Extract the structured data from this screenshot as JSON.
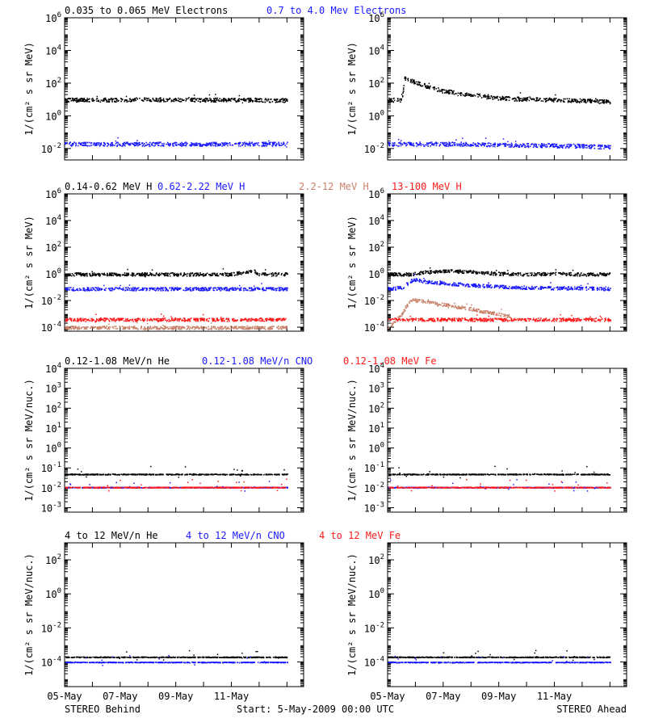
{
  "colors": {
    "black": "#000000",
    "blue": "#1a1aff",
    "tan": "#c8826a",
    "red": "#ff1a1a",
    "axis": "#000000"
  },
  "footer": {
    "left_label": "STEREO Behind",
    "center_label": "Start:  5-May-2009 00:00 UTC",
    "right_label": "STEREO Ahead"
  },
  "x_ticks": [
    "05-May",
    "07-May",
    "09-May",
    "11-May"
  ],
  "chart_data": [
    {
      "type": "scatter",
      "panel": "electrons-behind",
      "ylabel": "1/(cm² s sr MeV)",
      "yscale": "log",
      "ylim": [
        0.002,
        1000000
      ],
      "y_ticks": [
        {
          "label": "10^-2",
          "exp": -2
        },
        {
          "label": "10^0",
          "exp": 0
        },
        {
          "label": "10^2",
          "exp": 2
        },
        {
          "label": "10^4",
          "exp": 4
        },
        {
          "label": "10^6",
          "exp": 6
        }
      ],
      "title_entries": [
        {
          "text": "0.035 to 0.065 MeV Electrons",
          "color": "#000000"
        },
        {
          "text": "0.7 to 4.0 Mev Electrons",
          "color": "#1a1aff"
        }
      ],
      "series": [
        {
          "name": "0.035 to 0.065 MeV Electrons",
          "color": "#000000",
          "x": [
            0,
            1,
            2,
            3,
            4,
            5,
            6,
            7,
            8
          ],
          "y": [
            10,
            10,
            10,
            11,
            10,
            10,
            10,
            10,
            9
          ]
        },
        {
          "name": "0.7 to 4.0 Mev Electrons",
          "color": "#1a1aff",
          "x": [
            0,
            1,
            2,
            3,
            4,
            5,
            6,
            7,
            8
          ],
          "y": [
            0.02,
            0.02,
            0.02,
            0.02,
            0.02,
            0.02,
            0.02,
            0.02,
            0.02
          ]
        }
      ]
    },
    {
      "type": "scatter",
      "panel": "electrons-ahead",
      "ylabel": "1/(cm² s sr MeV)",
      "yscale": "log",
      "ylim": [
        0.002,
        1000000
      ],
      "y_ticks": [
        {
          "label": "10^-2",
          "exp": -2
        },
        {
          "label": "10^0",
          "exp": 0
        },
        {
          "label": "10^2",
          "exp": 2
        },
        {
          "label": "10^4",
          "exp": 4
        },
        {
          "label": "10^6",
          "exp": 6
        }
      ],
      "title_entries": [],
      "series": [
        {
          "name": "0.035 to 0.065 MeV Electrons",
          "color": "#000000",
          "x": [
            0,
            0.5,
            0.6,
            1,
            1.5,
            2,
            3,
            4,
            5,
            6,
            7,
            8
          ],
          "y": [
            10,
            10,
            200,
            120,
            60,
            35,
            20,
            13,
            11,
            10,
            9,
            8
          ]
        },
        {
          "name": "0.7 to 4.0 Mev Electrons",
          "color": "#1a1aff",
          "x": [
            0,
            1,
            2,
            3,
            4,
            5,
            6,
            7,
            8
          ],
          "y": [
            0.02,
            0.02,
            0.02,
            0.02,
            0.018,
            0.017,
            0.016,
            0.015,
            0.013
          ]
        }
      ]
    },
    {
      "type": "scatter",
      "panel": "protons-behind",
      "ylabel": "1/(cm² s sr MeV)",
      "yscale": "log",
      "ylim": [
        5e-05,
        1000000
      ],
      "y_ticks": [
        {
          "label": "10^-4",
          "exp": -4
        },
        {
          "label": "10^-2",
          "exp": -2
        },
        {
          "label": "10^0",
          "exp": 0
        },
        {
          "label": "10^2",
          "exp": 2
        },
        {
          "label": "10^4",
          "exp": 4
        },
        {
          "label": "10^6",
          "exp": 6
        }
      ],
      "title_entries": [
        {
          "text": "0.14-0.62 MeV H",
          "color": "#000000"
        },
        {
          "text": "0.62-2.22 MeV H",
          "color": "#1a1aff"
        },
        {
          "text": "2.2-12 MeV H",
          "color": "#c8826a"
        },
        {
          "text": "13-100 MeV H",
          "color": "#ff1a1a"
        }
      ],
      "series": [
        {
          "name": "0.14-0.62 MeV H",
          "color": "#000000",
          "x": [
            0,
            1,
            2,
            3,
            4,
            5,
            6,
            6.8,
            7,
            8
          ],
          "y": [
            1,
            1,
            1,
            1,
            1,
            1,
            1,
            1.8,
            1,
            1
          ]
        },
        {
          "name": "0.62-2.22 MeV H",
          "color": "#1a1aff",
          "x": [
            0,
            1,
            2,
            3,
            4,
            5,
            6,
            7,
            8
          ],
          "y": [
            0.08,
            0.08,
            0.08,
            0.08,
            0.08,
            0.08,
            0.08,
            0.08,
            0.08
          ]
        },
        {
          "name": "2.2-12 MeV H",
          "color": "#c8826a",
          "x": [
            0,
            1,
            2,
            3,
            4,
            5,
            6,
            7,
            8
          ],
          "y": [
            0.0001,
            0.0001,
            0.0001,
            0.0001,
            0.0001,
            0.0001,
            0.0001,
            0.0001,
            0.0001
          ]
        },
        {
          "name": "13-100 MeV H",
          "color": "#ff1a1a",
          "x": [
            0,
            1,
            2,
            3,
            4,
            5,
            6,
            7,
            8
          ],
          "y": [
            0.0004,
            0.0004,
            0.0004,
            0.0004,
            0.0004,
            0.0004,
            0.0004,
            0.0004,
            0.0004
          ]
        }
      ]
    },
    {
      "type": "scatter",
      "panel": "protons-ahead",
      "ylabel": "1/(cm² s sr MeV)",
      "yscale": "log",
      "ylim": [
        5e-05,
        1000000
      ],
      "y_ticks": [
        {
          "label": "10^-4",
          "exp": -4
        },
        {
          "label": "10^-2",
          "exp": -2
        },
        {
          "label": "10^0",
          "exp": 0
        },
        {
          "label": "10^2",
          "exp": 2
        },
        {
          "label": "10^4",
          "exp": 4
        },
        {
          "label": "10^6",
          "exp": 6
        }
      ],
      "title_entries": [],
      "series": [
        {
          "name": "0.14-0.62 MeV H",
          "color": "#000000",
          "x": [
            0,
            0.8,
            1.5,
            2.2,
            3,
            4,
            5,
            6,
            7,
            8
          ],
          "y": [
            1,
            1,
            1.6,
            1.8,
            1.5,
            1.1,
            1,
            1.1,
            1,
            1
          ]
        },
        {
          "name": "0.62-2.22 MeV H",
          "color": "#1a1aff",
          "x": [
            0,
            0.5,
            0.9,
            1.5,
            2.2,
            3,
            4,
            5,
            6,
            7,
            8
          ],
          "y": [
            0.08,
            0.1,
            0.4,
            0.25,
            0.2,
            0.15,
            0.12,
            0.1,
            0.09,
            0.09,
            0.08
          ]
        },
        {
          "name": "2.2-12 MeV H",
          "color": "#c8826a",
          "x": [
            0,
            0.5,
            0.8,
            1.2,
            1.8,
            2.4,
            3,
            3.5,
            4,
            4.4
          ],
          "y": [
            0.0001,
            0.001,
            0.012,
            0.01,
            0.006,
            0.004,
            0.0025,
            0.0015,
            0.001,
            0.0007
          ]
        },
        {
          "name": "13-100 MeV H",
          "color": "#ff1a1a",
          "x": [
            0,
            1,
            2,
            3,
            4,
            5,
            6,
            7,
            8
          ],
          "y": [
            0.0004,
            0.0004,
            0.0004,
            0.0004,
            0.0004,
            0.0004,
            0.0004,
            0.0004,
            0.0004
          ]
        }
      ]
    },
    {
      "type": "scatter",
      "panel": "heavy-low-behind",
      "ylabel": "1/(cm² s sr MeV/nuc.)",
      "yscale": "log",
      "ylim": [
        0.0006,
        10000
      ],
      "y_ticks": [
        {
          "label": "10^-3",
          "exp": -3
        },
        {
          "label": "10^-2",
          "exp": -2
        },
        {
          "label": "10^-1",
          "exp": -1
        },
        {
          "label": "10^0",
          "exp": 0
        },
        {
          "label": "10^1",
          "exp": 1
        },
        {
          "label": "10^2",
          "exp": 2
        },
        {
          "label": "10^3",
          "exp": 3
        },
        {
          "label": "10^4",
          "exp": 4
        }
      ],
      "title_entries": [
        {
          "text": "0.12-1.08 MeV/n He",
          "color": "#000000"
        },
        {
          "text": "0.12-1.08 MeV/n CNO",
          "color": "#1a1aff"
        },
        {
          "text": "0.12-1.08 MeV Fe",
          "color": "#ff1a1a"
        }
      ],
      "series": [
        {
          "name": "0.12-1.08 MeV/n He",
          "color": "#000000",
          "x": [
            0,
            8
          ],
          "y": [
            0.05,
            0.05
          ]
        },
        {
          "name": "0.12-1.08 MeV/n CNO",
          "color": "#1a1aff",
          "x": [
            0,
            8
          ],
          "y": [
            0.011,
            0.011
          ]
        },
        {
          "name": "0.12-1.08 MeV Fe",
          "color": "#ff1a1a",
          "x": [
            0,
            8
          ],
          "y": [
            0.011,
            0.011
          ]
        }
      ]
    },
    {
      "type": "scatter",
      "panel": "heavy-low-ahead",
      "ylabel": "1/(cm² s sr MeV/nuc.)",
      "yscale": "log",
      "ylim": [
        0.0006,
        10000
      ],
      "y_ticks": [
        {
          "label": "10^-3",
          "exp": -3
        },
        {
          "label": "10^-2",
          "exp": -2
        },
        {
          "label": "10^-1",
          "exp": -1
        },
        {
          "label": "10^0",
          "exp": 0
        },
        {
          "label": "10^1",
          "exp": 1
        },
        {
          "label": "10^2",
          "exp": 2
        },
        {
          "label": "10^3",
          "exp": 3
        },
        {
          "label": "10^4",
          "exp": 4
        }
      ],
      "title_entries": [],
      "series": [
        {
          "name": "0.12-1.08 MeV/n He",
          "color": "#000000",
          "x": [
            0,
            8
          ],
          "y": [
            0.05,
            0.05
          ]
        },
        {
          "name": "0.12-1.08 MeV/n CNO",
          "color": "#1a1aff",
          "x": [
            0,
            8
          ],
          "y": [
            0.011,
            0.011
          ]
        },
        {
          "name": "0.12-1.08 MeV Fe",
          "color": "#ff1a1a",
          "x": [
            0,
            8
          ],
          "y": [
            0.011,
            0.011
          ]
        }
      ]
    },
    {
      "type": "scatter",
      "panel": "heavy-high-behind",
      "ylabel": "1/(cm² s sr MeV/nuc.)",
      "yscale": "log",
      "ylim": [
        3.5e-06,
        1000
      ],
      "y_ticks": [
        {
          "label": "10^-4",
          "exp": -4
        },
        {
          "label": "10^-2",
          "exp": -2
        },
        {
          "label": "10^0",
          "exp": 0
        },
        {
          "label": "10^2",
          "exp": 2
        }
      ],
      "title_entries": [
        {
          "text": "4 to 12 MeV/n He",
          "color": "#000000"
        },
        {
          "text": "4 to 12 MeV/n CNO",
          "color": "#1a1aff"
        },
        {
          "text": "4 to 12 MeV Fe",
          "color": "#ff1a1a"
        }
      ],
      "series": [
        {
          "name": "4 to 12 MeV/n He",
          "color": "#000000",
          "x": [
            0,
            8
          ],
          "y": [
            0.0002,
            0.0002
          ]
        },
        {
          "name": "4 to 12 MeV/n CNO",
          "color": "#1a1aff",
          "x": [
            0,
            8
          ],
          "y": [
            0.0001,
            0.0001
          ]
        }
      ]
    },
    {
      "type": "scatter",
      "panel": "heavy-high-ahead",
      "ylabel": "1/(cm² s sr MeV/nuc.)",
      "yscale": "log",
      "ylim": [
        3.5e-06,
        1000
      ],
      "y_ticks": [
        {
          "label": "10^-4",
          "exp": -4
        },
        {
          "label": "10^-2",
          "exp": -2
        },
        {
          "label": "10^0",
          "exp": 0
        },
        {
          "label": "10^2",
          "exp": 2
        }
      ],
      "title_entries": [],
      "series": [
        {
          "name": "4 to 12 MeV/n He",
          "color": "#000000",
          "x": [
            0,
            8
          ],
          "y": [
            0.0002,
            0.0002
          ]
        },
        {
          "name": "4 to 12 MeV/n CNO",
          "color": "#1a1aff",
          "x": [
            0,
            8
          ],
          "y": [
            0.0001,
            0.0001
          ]
        }
      ]
    }
  ]
}
